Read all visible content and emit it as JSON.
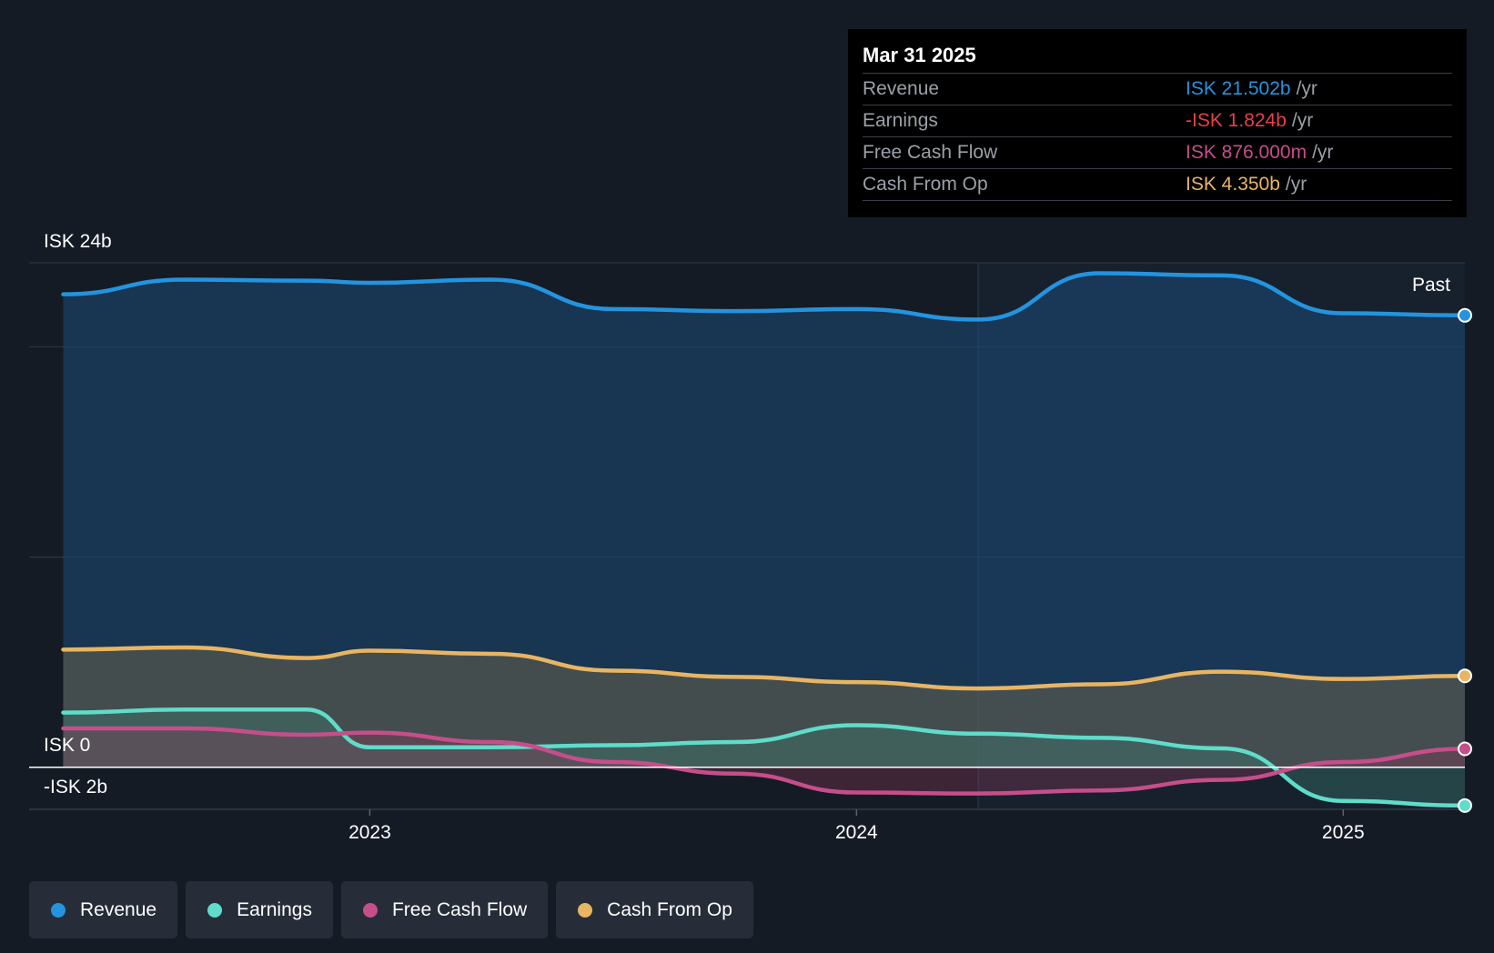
{
  "tooltip": {
    "date": "Mar 31 2025",
    "rows": [
      {
        "name": "Revenue",
        "value": "ISK 21.502b",
        "unit": "/yr",
        "color": "#2394df"
      },
      {
        "name": "Earnings",
        "value": "-ISK 1.824b",
        "unit": "/yr",
        "color": "#e64049"
      },
      {
        "name": "Free Cash Flow",
        "value": "ISK 876.000m",
        "unit": "/yr",
        "color": "#c64e8a"
      },
      {
        "name": "Cash From Op",
        "value": "ISK 4.350b",
        "unit": "/yr",
        "color": "#e8b563"
      }
    ]
  },
  "legend": [
    {
      "label": "Revenue",
      "color": "#2394df"
    },
    {
      "label": "Earnings",
      "color": "#5fdcca"
    },
    {
      "label": "Free Cash Flow",
      "color": "#c64e8a"
    },
    {
      "label": "Cash From Op",
      "color": "#e8b563"
    }
  ],
  "chart_data": {
    "type": "area",
    "y_labels": [
      "ISK 24b",
      "ISK 0",
      "-ISK 2b"
    ],
    "ylim": [
      -2,
      24
    ],
    "xlim": [
      2022.3,
      2025.25
    ],
    "x_ticks": [
      {
        "label": "2023",
        "value": 2023.0
      },
      {
        "label": "2024",
        "value": 2024.0
      },
      {
        "label": "2025",
        "value": 2025.0
      }
    ],
    "past_label": "Past",
    "past_start": 2024.25,
    "grid": true,
    "series": [
      {
        "name": "Revenue",
        "color": "#2394df",
        "fill": "#1c4a78",
        "fill_opacity": 0.55,
        "x": [
          2022.37,
          2022.62,
          2022.87,
          2023.0,
          2023.25,
          2023.5,
          2023.75,
          2024.0,
          2024.25,
          2024.5,
          2024.75,
          2025.0,
          2025.25
        ],
        "y": [
          22.5,
          23.2,
          23.15,
          23.05,
          23.2,
          21.8,
          21.7,
          21.8,
          21.3,
          23.5,
          23.4,
          21.6,
          21.5
        ]
      },
      {
        "name": "Cash From Op",
        "color": "#e8b563",
        "fill": "#7a6a4a",
        "fill_opacity": 0.45,
        "x": [
          2022.37,
          2022.62,
          2022.87,
          2023.0,
          2023.25,
          2023.5,
          2023.75,
          2024.0,
          2024.25,
          2024.5,
          2024.75,
          2025.0,
          2025.25
        ],
        "y": [
          5.6,
          5.7,
          5.2,
          5.55,
          5.4,
          4.6,
          4.3,
          4.05,
          3.75,
          3.95,
          4.55,
          4.2,
          4.35
        ]
      },
      {
        "name": "Earnings",
        "color": "#5fdcca",
        "fill": "#3d7a70",
        "fill_opacity": 0.4,
        "x": [
          2022.37,
          2022.62,
          2022.87,
          2023.0,
          2023.25,
          2023.5,
          2023.75,
          2024.0,
          2024.25,
          2024.5,
          2024.75,
          2025.0,
          2025.25
        ],
        "y": [
          2.6,
          2.75,
          2.75,
          0.95,
          0.95,
          1.05,
          1.2,
          2.0,
          1.6,
          1.4,
          0.9,
          -1.6,
          -1.82
        ]
      },
      {
        "name": "Free Cash Flow",
        "color": "#c64e8a",
        "fill": "#8a3a5a",
        "fill_opacity": 0.35,
        "x": [
          2022.37,
          2022.62,
          2022.87,
          2023.0,
          2023.25,
          2023.5,
          2023.75,
          2024.0,
          2024.25,
          2024.5,
          2024.75,
          2025.0,
          2025.25
        ],
        "y": [
          1.85,
          1.85,
          1.55,
          1.65,
          1.2,
          0.25,
          -0.3,
          -1.2,
          -1.25,
          -1.1,
          -0.6,
          0.25,
          0.876
        ]
      }
    ]
  }
}
